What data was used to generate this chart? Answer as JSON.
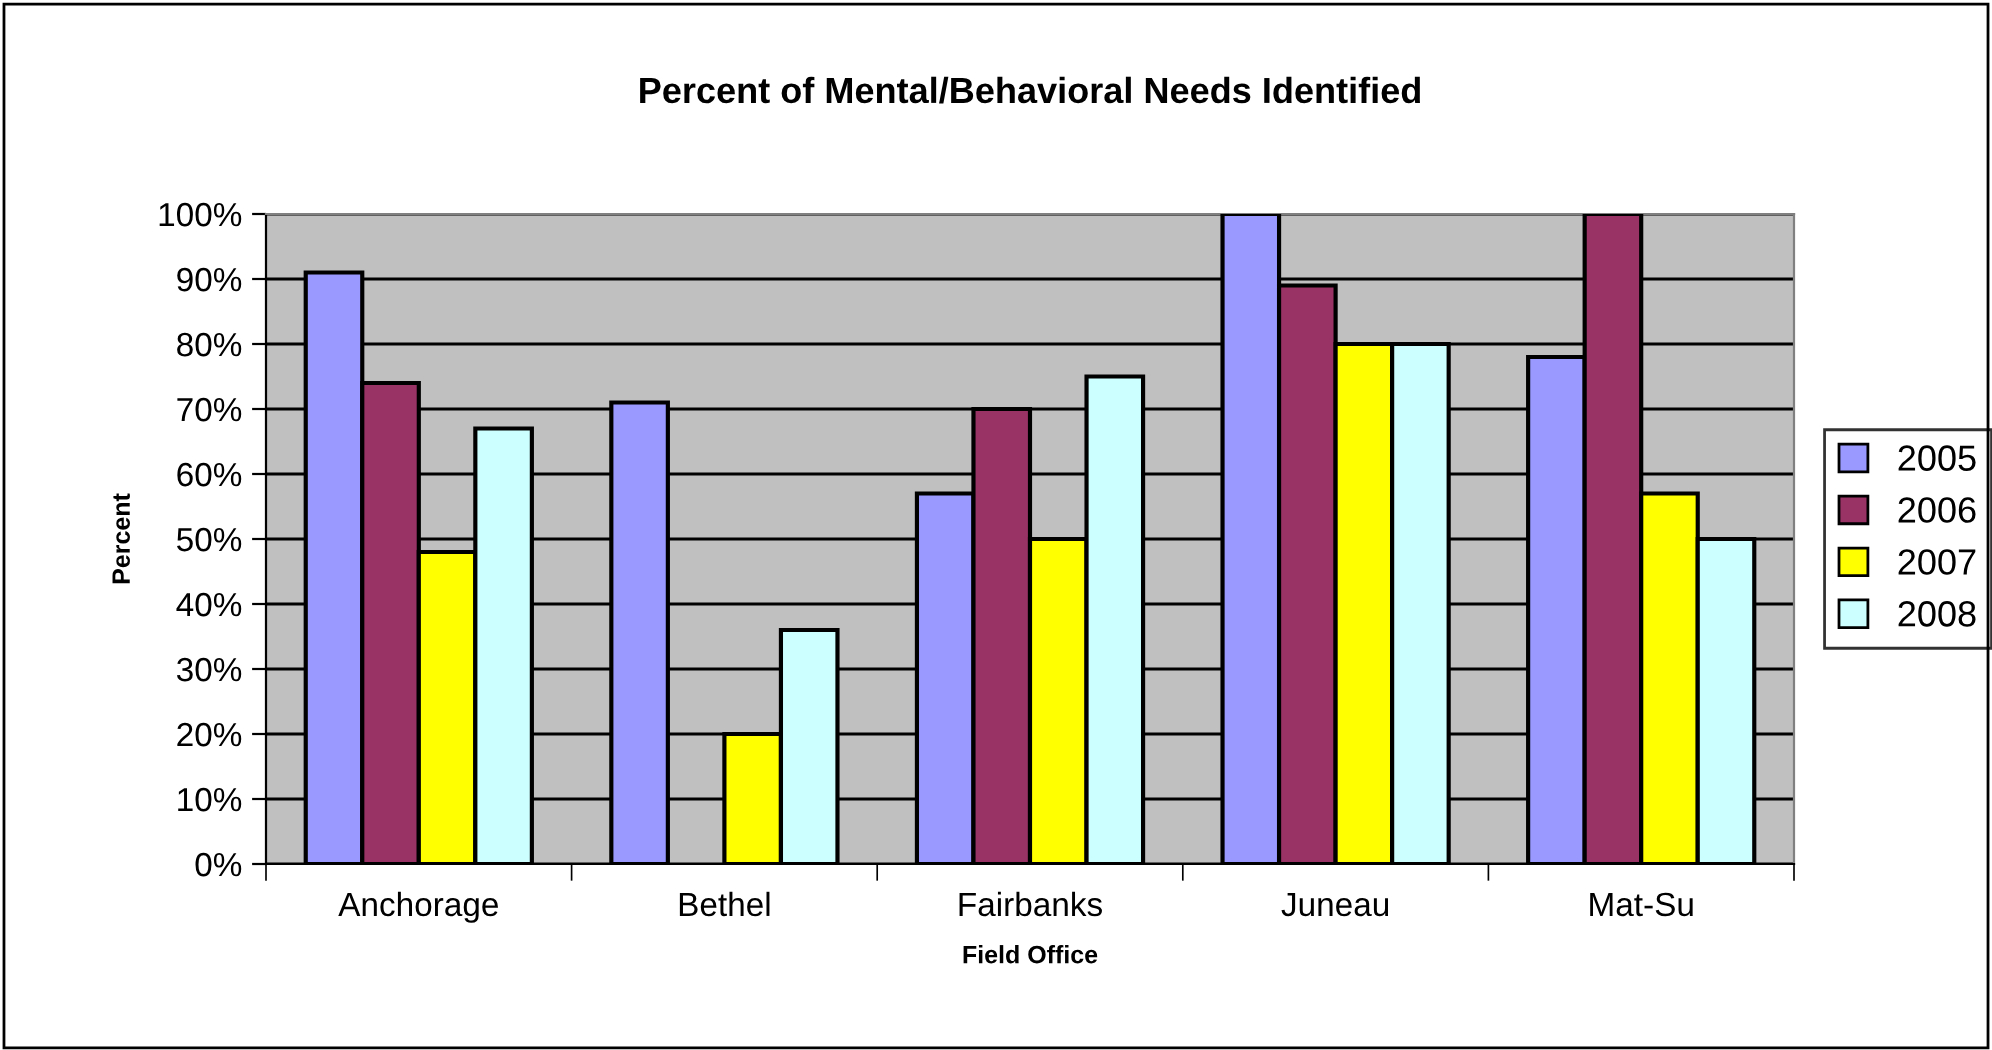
{
  "chart_data": {
    "type": "bar",
    "title": "Percent of Mental/Behavioral Needs Identified",
    "xlabel": "Field Office",
    "ylabel": "Percent",
    "categories": [
      "Anchorage",
      "Bethel",
      "Fairbanks",
      "Juneau",
      "Mat-Su"
    ],
    "series": [
      {
        "name": "2005",
        "color": "#9999ff",
        "values": [
          91,
          71,
          57,
          100,
          78
        ]
      },
      {
        "name": "2006",
        "color": "#993366",
        "values": [
          74,
          0,
          70,
          89,
          100
        ]
      },
      {
        "name": "2007",
        "color": "#ffff00",
        "values": [
          48,
          20,
          50,
          80,
          57
        ]
      },
      {
        "name": "2008",
        "color": "#ccffff",
        "values": [
          67,
          36,
          75,
          80,
          50
        ]
      }
    ],
    "ylim": [
      0,
      100
    ],
    "yticks": [
      {
        "value": 0,
        "label": "0%"
      },
      {
        "value": 10,
        "label": "10%"
      },
      {
        "value": 20,
        "label": "20%"
      },
      {
        "value": 30,
        "label": "30%"
      },
      {
        "value": 40,
        "label": "40%"
      },
      {
        "value": 50,
        "label": "50%"
      },
      {
        "value": 60,
        "label": "60%"
      },
      {
        "value": 70,
        "label": "70%"
      },
      {
        "value": 80,
        "label": "80%"
      },
      {
        "value": 90,
        "label": "90%"
      },
      {
        "value": 100,
        "label": "100%"
      }
    ],
    "grid": "y",
    "legend": "right"
  }
}
